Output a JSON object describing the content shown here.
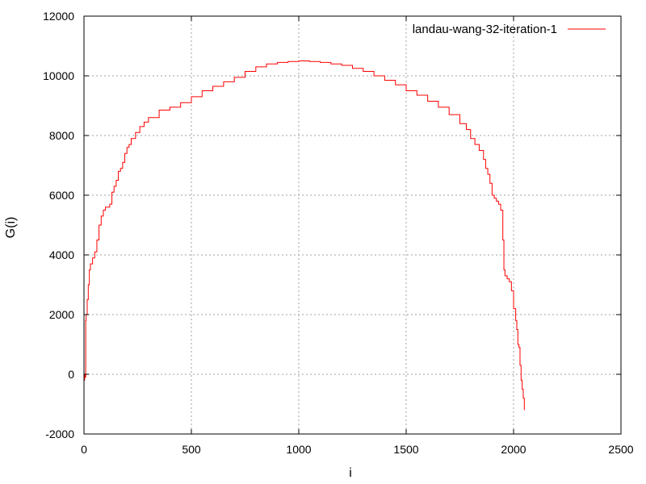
{
  "chart_data": {
    "type": "line",
    "xlabel": "i",
    "ylabel": "G(i)",
    "xlim": [
      0,
      2500
    ],
    "ylim": [
      -2000,
      12000
    ],
    "xticks": [
      0,
      500,
      1000,
      1500,
      2000,
      2500
    ],
    "yticks": [
      -2000,
      0,
      2000,
      4000,
      6000,
      8000,
      10000,
      12000
    ],
    "grid": true,
    "legend_position": "top-right",
    "series": [
      {
        "name": "landau-wang-32-iteration-1",
        "color": "#ff0000",
        "x": [
          0,
          3,
          5,
          8,
          10,
          15,
          20,
          25,
          30,
          40,
          50,
          60,
          70,
          80,
          90,
          100,
          120,
          130,
          140,
          150,
          160,
          170,
          180,
          190,
          200,
          210,
          220,
          240,
          260,
          280,
          300,
          350,
          400,
          450,
          500,
          550,
          600,
          650,
          700,
          750,
          800,
          850,
          900,
          950,
          1000,
          1050,
          1100,
          1150,
          1200,
          1250,
          1300,
          1350,
          1400,
          1450,
          1500,
          1550,
          1600,
          1650,
          1700,
          1750,
          1780,
          1800,
          1820,
          1840,
          1860,
          1870,
          1880,
          1890,
          1900,
          1910,
          1920,
          1930,
          1940,
          1950,
          1955,
          1960,
          1970,
          1980,
          1990,
          2000,
          2010,
          2015,
          2020,
          2025,
          2030,
          2035,
          2040,
          2045,
          2050
        ],
        "y": [
          -200,
          0,
          -100,
          1800,
          2000,
          2500,
          3000,
          3500,
          3700,
          3900,
          4100,
          4500,
          5000,
          5300,
          5500,
          5600,
          5700,
          6100,
          6300,
          6500,
          6800,
          6900,
          7100,
          7400,
          7600,
          7700,
          7900,
          8100,
          8300,
          8450,
          8600,
          8850,
          8950,
          9100,
          9300,
          9500,
          9650,
          9800,
          9950,
          10150,
          10300,
          10400,
          10450,
          10480,
          10500,
          10480,
          10450,
          10400,
          10350,
          10250,
          10150,
          10000,
          9850,
          9700,
          9500,
          9350,
          9150,
          8950,
          8700,
          8400,
          8200,
          7900,
          7700,
          7500,
          7200,
          6900,
          6700,
          6400,
          6000,
          5900,
          5800,
          5700,
          5500,
          4500,
          3500,
          3300,
          3200,
          3100,
          2800,
          2200,
          1800,
          1500,
          1000,
          900,
          300,
          -200,
          -500,
          -800,
          -1200
        ]
      }
    ]
  }
}
